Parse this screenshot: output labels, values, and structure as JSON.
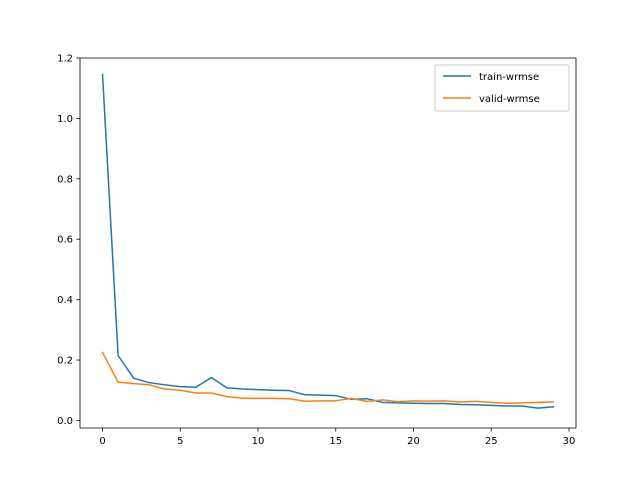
{
  "chart_data": {
    "type": "line",
    "title": "",
    "xlabel": "",
    "ylabel": "",
    "xlim": [
      -1.45,
      30.45
    ],
    "ylim": [
      -0.025,
      1.2
    ],
    "xticks": [
      0,
      5,
      10,
      15,
      20,
      25,
      30
    ],
    "yticks": [
      0.0,
      0.2,
      0.4,
      0.6,
      0.8,
      1.0,
      1.2
    ],
    "xtick_labels": [
      "0",
      "5",
      "10",
      "15",
      "20",
      "25",
      "30"
    ],
    "ytick_labels": [
      "0.0",
      "0.2",
      "0.4",
      "0.6",
      "0.8",
      "1.0",
      "1.2"
    ],
    "grid": false,
    "legend_position": "top-right",
    "x": [
      0,
      1,
      2,
      3,
      4,
      5,
      6,
      7,
      8,
      9,
      10,
      11,
      12,
      13,
      14,
      15,
      16,
      17,
      18,
      19,
      20,
      21,
      22,
      23,
      24,
      25,
      26,
      27,
      28,
      29
    ],
    "series": [
      {
        "name": "train-wrmse",
        "color": "#1f77b4",
        "values": [
          1.145,
          0.215,
          0.14,
          0.125,
          0.118,
          0.112,
          0.11,
          0.142,
          0.108,
          0.104,
          0.102,
          0.1,
          0.099,
          0.085,
          0.084,
          0.082,
          0.07,
          0.072,
          0.06,
          0.058,
          0.057,
          0.056,
          0.056,
          0.053,
          0.052,
          0.05,
          0.048,
          0.048,
          0.041,
          0.045
        ]
      },
      {
        "name": "valid-wrmse",
        "color": "#ff7f0e",
        "values": [
          0.225,
          0.127,
          0.122,
          0.118,
          0.104,
          0.1,
          0.091,
          0.091,
          0.079,
          0.074,
          0.073,
          0.073,
          0.072,
          0.064,
          0.065,
          0.065,
          0.073,
          0.063,
          0.068,
          0.062,
          0.065,
          0.064,
          0.065,
          0.061,
          0.063,
          0.06,
          0.057,
          0.058,
          0.06,
          0.061
        ]
      }
    ]
  }
}
